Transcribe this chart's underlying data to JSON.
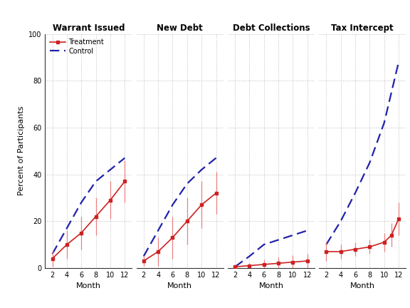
{
  "months": [
    2,
    4,
    6,
    8,
    10,
    12
  ],
  "panels": [
    {
      "title": "Warrant Issued",
      "t_months": [
        2,
        4,
        6,
        8,
        10,
        12
      ],
      "t_y": [
        4,
        10,
        15,
        22,
        29,
        37
      ],
      "t_yerr": [
        3.5,
        6,
        7,
        8,
        8,
        9
      ],
      "c_months": [
        2,
        4,
        6,
        8,
        10,
        12
      ],
      "c_y": [
        6,
        17,
        28,
        37,
        42,
        47
      ]
    },
    {
      "title": "New Debt",
      "t_months": [
        2,
        4,
        6,
        8,
        10,
        12
      ],
      "t_y": [
        3,
        7,
        13,
        20,
        27,
        32
      ],
      "t_yerr": [
        2,
        6,
        9,
        10,
        10,
        9
      ],
      "c_months": [
        2,
        4,
        6,
        8,
        10,
        12
      ],
      "c_y": [
        5,
        16,
        27,
        36,
        42,
        47
      ]
    },
    {
      "title": "Debt Collections",
      "t_months": [
        2,
        4,
        6,
        8,
        10,
        12
      ],
      "t_y": [
        0.5,
        1.0,
        1.5,
        2.0,
        2.5,
        3.0
      ],
      "t_yerr": [
        0.5,
        1.0,
        2.0,
        2.5,
        3.0,
        3.0
      ],
      "c_months": [
        2,
        4,
        6,
        8,
        10,
        12
      ],
      "c_y": [
        0.5,
        5,
        10,
        12,
        14,
        16
      ]
    },
    {
      "title": "Tax Intercept",
      "t_months": [
        2,
        4,
        6,
        8,
        10,
        11,
        12
      ],
      "t_y": [
        7,
        7,
        8,
        9,
        11,
        14,
        21
      ],
      "t_yerr": [
        4,
        3,
        3,
        3,
        4,
        5,
        7
      ],
      "c_months": [
        2,
        4,
        6,
        8,
        10,
        12
      ],
      "c_y": [
        10,
        20,
        32,
        45,
        62,
        88
      ]
    }
  ],
  "ylim": [
    0,
    100
  ],
  "yticks": [
    0,
    20,
    40,
    60,
    80,
    100
  ],
  "xticks": [
    2,
    4,
    6,
    8,
    10,
    12
  ],
  "treatment_color": "#CC2222",
  "control_color": "#2222AA",
  "treatment_label": "Treatment",
  "control_label": "Control",
  "ylabel": "Percent of Participants",
  "xlabel": "Month",
  "background_color": "#ffffff",
  "grid_color": "#bbbbbb"
}
